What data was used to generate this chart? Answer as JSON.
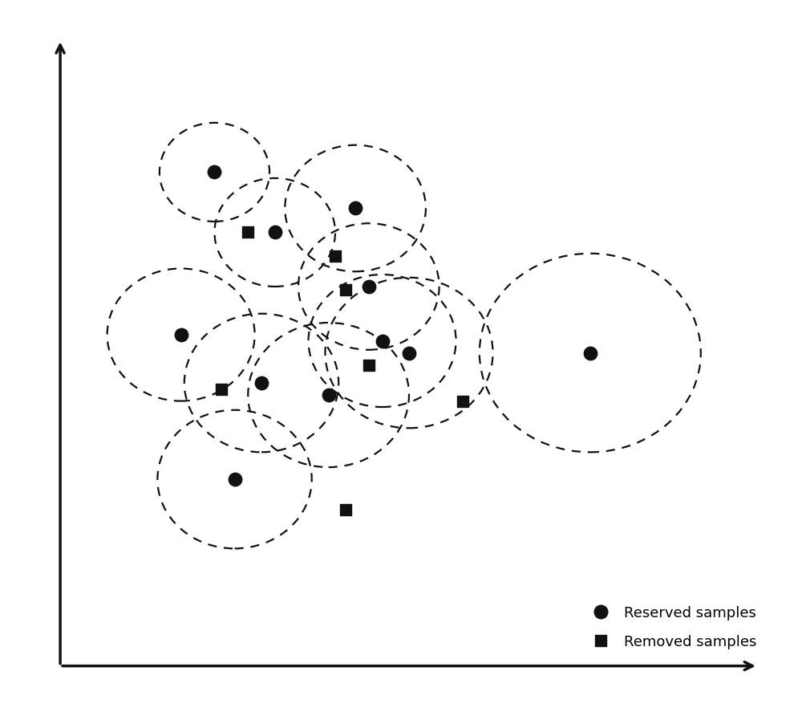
{
  "background_color": "#ffffff",
  "reserved_samples": [
    [
      2.6,
      8.5
    ],
    [
      3.5,
      7.5
    ],
    [
      4.7,
      7.9
    ],
    [
      4.9,
      6.6
    ],
    [
      5.1,
      5.7
    ],
    [
      5.5,
      5.5
    ],
    [
      2.1,
      5.8
    ],
    [
      3.3,
      5.0
    ],
    [
      4.3,
      4.8
    ],
    [
      2.9,
      3.4
    ],
    [
      8.2,
      5.5
    ]
  ],
  "removed_samples": [
    [
      3.1,
      7.5
    ],
    [
      4.4,
      7.1
    ],
    [
      4.55,
      6.55
    ],
    [
      2.7,
      4.9
    ],
    [
      4.9,
      5.3
    ],
    [
      6.3,
      4.7
    ],
    [
      4.55,
      2.9
    ]
  ],
  "circles": [
    [
      2.6,
      8.5,
      0.82
    ],
    [
      3.5,
      7.5,
      0.9
    ],
    [
      4.7,
      7.9,
      1.05
    ],
    [
      4.9,
      6.6,
      1.05
    ],
    [
      5.1,
      5.7,
      1.1
    ],
    [
      5.5,
      5.5,
      1.25
    ],
    [
      2.1,
      5.8,
      1.1
    ],
    [
      3.3,
      5.0,
      1.15
    ],
    [
      4.3,
      4.8,
      1.2
    ],
    [
      2.9,
      3.4,
      1.15
    ],
    [
      8.2,
      5.5,
      1.65
    ]
  ],
  "xlim": [
    0,
    11
  ],
  "ylim": [
    0,
    11
  ],
  "dot_color": "#111111",
  "circle_dash": [
    5,
    4
  ],
  "legend_fontsize": 13,
  "marker_size_dot": 140,
  "marker_size_sq": 110,
  "line_width": 1.6,
  "axis_lw": 2.5,
  "arrow_mutation_scale": 18
}
